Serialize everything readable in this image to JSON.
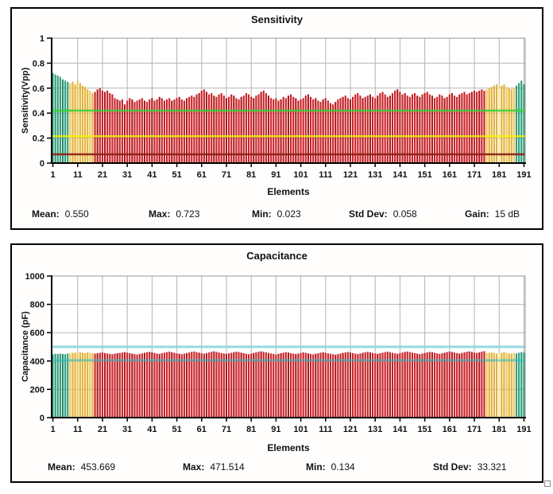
{
  "chart_data": [
    {
      "type": "bar",
      "title": "Sensitivity",
      "ylabel": "Sensitivity(Vpp)",
      "xlabel": "Elements",
      "y_min": 0,
      "y_max": 1,
      "y_ticks": [
        0,
        0.2,
        0.4,
        0.6,
        0.8,
        1
      ],
      "y_tick_labels": [
        "0",
        "0.2",
        "0.4",
        "0.6",
        "0.8",
        "1"
      ],
      "x_ticks": [
        1,
        11,
        21,
        31,
        41,
        51,
        61,
        71,
        81,
        91,
        101,
        111,
        121,
        131,
        141,
        151,
        161,
        171,
        181,
        191
      ],
      "grid_color": "#b3b3b3",
      "zones": [
        {
          "from": 1,
          "to": 7,
          "color": "#2f9e7c",
          "alt": "#27876a",
          "meaning": "edge-green"
        },
        {
          "from": 8,
          "to": 17,
          "color": "#e3b23a",
          "alt": "#edc85a",
          "meaning": "edge-yellow"
        },
        {
          "from": 18,
          "to": 175,
          "color": "#cc2127",
          "alt": "#a91b20",
          "meaning": "center-red"
        },
        {
          "from": 176,
          "to": 187,
          "color": "#e3b23a",
          "alt": "#edc85a",
          "meaning": "edge-yellow"
        },
        {
          "from": 188,
          "to": 191,
          "color": "#2f9e7c",
          "alt": "#27876a",
          "meaning": "edge-green"
        }
      ],
      "dead_elements": [
        181
      ],
      "dead_color": "#f3e6b8",
      "reference_lines": [
        {
          "y": 0.42,
          "color": "#2fd42f",
          "opacity": 0.85,
          "width": 2.5
        },
        {
          "y": 0.215,
          "color": "#f2f200",
          "opacity": 0.8,
          "width": 2.5
        },
        {
          "y": 0.07,
          "color": "#8e2317",
          "opacity": 0.95,
          "width": 2.5
        }
      ],
      "values": [
        0.72,
        0.71,
        0.7,
        0.69,
        0.67,
        0.66,
        0.65,
        0.64,
        0.65,
        0.63,
        0.66,
        0.64,
        0.62,
        0.61,
        0.59,
        0.58,
        0.56,
        0.57,
        0.59,
        0.6,
        0.58,
        0.57,
        0.58,
        0.56,
        0.55,
        0.52,
        0.51,
        0.5,
        0.51,
        0.47,
        0.5,
        0.52,
        0.51,
        0.49,
        0.5,
        0.51,
        0.52,
        0.5,
        0.49,
        0.51,
        0.52,
        0.5,
        0.51,
        0.53,
        0.52,
        0.5,
        0.51,
        0.52,
        0.5,
        0.51,
        0.52,
        0.53,
        0.51,
        0.5,
        0.52,
        0.53,
        0.54,
        0.53,
        0.55,
        0.56,
        0.58,
        0.59,
        0.57,
        0.55,
        0.56,
        0.54,
        0.53,
        0.55,
        0.56,
        0.54,
        0.52,
        0.53,
        0.55,
        0.54,
        0.52,
        0.51,
        0.53,
        0.54,
        0.56,
        0.55,
        0.53,
        0.52,
        0.54,
        0.55,
        0.57,
        0.58,
        0.56,
        0.54,
        0.52,
        0.51,
        0.52,
        0.5,
        0.51,
        0.53,
        0.52,
        0.54,
        0.55,
        0.53,
        0.52,
        0.5,
        0.51,
        0.52,
        0.54,
        0.55,
        0.53,
        0.51,
        0.52,
        0.5,
        0.49,
        0.51,
        0.52,
        0.5,
        0.48,
        0.47,
        0.49,
        0.51,
        0.52,
        0.53,
        0.54,
        0.52,
        0.51,
        0.53,
        0.55,
        0.56,
        0.54,
        0.52,
        0.53,
        0.54,
        0.55,
        0.53,
        0.52,
        0.54,
        0.56,
        0.57,
        0.55,
        0.53,
        0.54,
        0.56,
        0.58,
        0.59,
        0.57,
        0.55,
        0.56,
        0.54,
        0.53,
        0.55,
        0.56,
        0.54,
        0.53,
        0.55,
        0.56,
        0.57,
        0.55,
        0.54,
        0.52,
        0.53,
        0.55,
        0.54,
        0.52,
        0.53,
        0.55,
        0.56,
        0.54,
        0.53,
        0.55,
        0.56,
        0.57,
        0.55,
        0.56,
        0.57,
        0.58,
        0.57,
        0.58,
        0.59,
        0.58,
        0.59,
        0.6,
        0.61,
        0.62,
        0.63,
        0.6,
        0.62,
        0.63,
        0.61,
        0.6,
        0.59,
        0.6,
        0.62,
        0.64,
        0.66,
        0.63
      ],
      "stats": [
        {
          "label": "Mean:",
          "value": "0.550"
        },
        {
          "label": "Max:",
          "value": "0.723"
        },
        {
          "label": "Min:",
          "value": "0.023"
        },
        {
          "label": "Std Dev:",
          "value": "0.058"
        },
        {
          "label": "Gain:",
          "value": "15 dB"
        }
      ]
    },
    {
      "type": "bar",
      "title": "Capacitance",
      "ylabel": "Capacitance (pF)",
      "xlabel": "Elements",
      "y_min": 0,
      "y_max": 1000,
      "y_ticks": [
        0,
        200,
        400,
        600,
        800,
        1000
      ],
      "y_tick_labels": [
        "0",
        "200",
        "400",
        "600",
        "800",
        "1000"
      ],
      "x_ticks": [
        1,
        11,
        21,
        31,
        41,
        51,
        61,
        71,
        81,
        91,
        101,
        111,
        121,
        131,
        141,
        151,
        161,
        171,
        181,
        191
      ],
      "grid_color": "#b3b3b3",
      "zones": [
        {
          "from": 1,
          "to": 7,
          "color": "#2f9e7c",
          "alt": "#27876a",
          "meaning": "edge-green"
        },
        {
          "from": 8,
          "to": 17,
          "color": "#e3b23a",
          "alt": "#edc85a",
          "meaning": "edge-yellow"
        },
        {
          "from": 18,
          "to": 175,
          "color": "#cc2127",
          "alt": "#a91b20",
          "meaning": "center-red"
        },
        {
          "from": 176,
          "to": 187,
          "color": "#e3b23a",
          "alt": "#edc85a",
          "meaning": "edge-yellow"
        },
        {
          "from": 188,
          "to": 191,
          "color": "#2f9e7c",
          "alt": "#27876a",
          "meaning": "edge-green"
        }
      ],
      "dead_elements": [
        181
      ],
      "dead_color": "#f3e6b8",
      "reference_lines": [
        {
          "y": 500,
          "color": "#8ed7dd",
          "opacity": 0.95,
          "width": 3
        },
        {
          "y": 405,
          "color": "#30c2c6",
          "opacity": 0.55,
          "width": 3
        }
      ],
      "values": [
        447,
        451,
        449,
        452,
        450,
        448,
        453,
        455,
        458,
        460,
        457,
        462,
        459,
        456,
        461,
        458,
        455,
        452,
        455,
        458,
        461,
        456,
        453,
        450,
        448,
        452,
        455,
        457,
        460,
        463,
        459,
        455,
        452,
        449,
        446,
        450,
        454,
        458,
        462,
        465,
        461,
        457,
        453,
        450,
        455,
        459,
        463,
        466,
        462,
        458,
        454,
        451,
        448,
        452,
        456,
        460,
        464,
        467,
        463,
        459,
        455,
        452,
        456,
        460,
        465,
        468,
        464,
        460,
        456,
        453,
        450,
        454,
        458,
        462,
        466,
        463,
        459,
        455,
        451,
        448,
        452,
        457,
        461,
        465,
        468,
        465,
        461,
        457,
        453,
        450,
        446,
        451,
        455,
        459,
        463,
        460,
        456,
        452,
        449,
        453,
        457,
        461,
        458,
        454,
        450,
        447,
        451,
        455,
        459,
        462,
        458,
        454,
        451,
        448,
        444,
        449,
        453,
        457,
        461,
        464,
        460,
        456,
        452,
        449,
        453,
        458,
        462,
        465,
        461,
        457,
        453,
        450,
        455,
        459,
        463,
        466,
        462,
        458,
        454,
        451,
        456,
        460,
        464,
        467,
        463,
        459,
        455,
        452,
        448,
        453,
        457,
        461,
        465,
        462,
        458,
        454,
        450,
        455,
        459,
        463,
        467,
        464,
        460,
        456,
        452,
        457,
        461,
        465,
        468,
        464,
        460,
        457,
        461,
        466,
        469,
        455,
        458,
        461,
        457,
        453,
        455,
        459,
        462,
        458,
        454,
        451,
        456,
        453,
        458,
        463,
        459
      ],
      "stats": [
        {
          "label": "Mean:",
          "value": "453.669"
        },
        {
          "label": "Max:",
          "value": "471.514"
        },
        {
          "label": "Min:",
          "value": "0.134"
        },
        {
          "label": "Std Dev:",
          "value": "33.321"
        }
      ]
    }
  ]
}
